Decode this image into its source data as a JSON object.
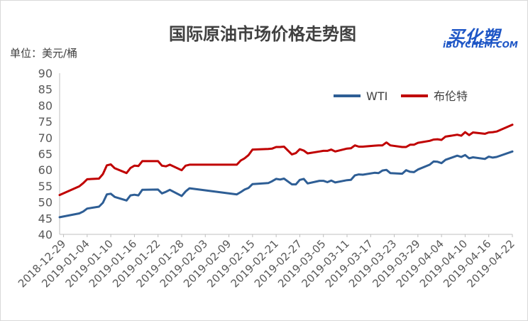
{
  "chart_data": {
    "type": "line",
    "title": "国际原油市场价格走势图",
    "unit": "单位：美元/桶",
    "ylim": [
      40,
      90
    ],
    "yticks": [
      40,
      45,
      50,
      55,
      60,
      65,
      70,
      75,
      80,
      85,
      90
    ],
    "xlim": [
      "2018-12-28",
      "2019-04-22"
    ],
    "x_tick_labels": [
      "2018-12-29",
      "2019-01-04",
      "2019-01-10",
      "2019-01-16",
      "2019-01-22",
      "2019-01-28",
      "2019-02-03",
      "2019-02-09",
      "2019-02-15",
      "2019-02-21",
      "2019-02-27",
      "2019-03-05",
      "2019-03-11",
      "2019-03-17",
      "2019-03-23",
      "2019-03-29",
      "2019-04-04",
      "2019-04-10",
      "2019-04-16",
      "2019-04-22"
    ],
    "legend_position": "top-right",
    "grid": false,
    "series": [
      {
        "name": "WTI",
        "color": "#2e5e95",
        "points": [
          [
            "2018-12-28",
            45.3
          ],
          [
            "2019-01-02",
            46.5
          ],
          [
            "2019-01-03",
            47.1
          ],
          [
            "2019-01-04",
            48.0
          ],
          [
            "2019-01-07",
            48.6
          ],
          [
            "2019-01-08",
            49.8
          ],
          [
            "2019-01-09",
            52.4
          ],
          [
            "2019-01-10",
            52.6
          ],
          [
            "2019-01-11",
            51.6
          ],
          [
            "2019-01-14",
            50.5
          ],
          [
            "2019-01-15",
            52.1
          ],
          [
            "2019-01-16",
            52.3
          ],
          [
            "2019-01-17",
            52.1
          ],
          [
            "2019-01-18",
            53.8
          ],
          [
            "2019-01-22",
            53.9
          ],
          [
            "2019-01-23",
            52.7
          ],
          [
            "2019-01-24",
            53.2
          ],
          [
            "2019-01-25",
            53.8
          ],
          [
            "2019-01-28",
            51.9
          ],
          [
            "2019-01-29",
            53.3
          ],
          [
            "2019-01-30",
            54.3
          ],
          [
            "2019-02-11",
            52.4
          ],
          [
            "2019-02-12",
            53.1
          ],
          [
            "2019-02-13",
            53.9
          ],
          [
            "2019-02-14",
            54.4
          ],
          [
            "2019-02-15",
            55.6
          ],
          [
            "2019-02-19",
            55.9
          ],
          [
            "2019-02-20",
            56.5
          ],
          [
            "2019-02-21",
            57.2
          ],
          [
            "2019-02-22",
            57.0
          ],
          [
            "2019-02-23",
            57.3
          ],
          [
            "2019-02-25",
            55.5
          ],
          [
            "2019-02-26",
            55.5
          ],
          [
            "2019-02-27",
            56.9
          ],
          [
            "2019-02-28",
            57.2
          ],
          [
            "2019-03-01",
            55.8
          ],
          [
            "2019-03-04",
            56.6
          ],
          [
            "2019-03-05",
            56.6
          ],
          [
            "2019-03-06",
            56.2
          ],
          [
            "2019-03-07",
            56.7
          ],
          [
            "2019-03-08",
            56.1
          ],
          [
            "2019-03-11",
            56.8
          ],
          [
            "2019-03-12",
            56.9
          ],
          [
            "2019-03-13",
            58.3
          ],
          [
            "2019-03-14",
            58.6
          ],
          [
            "2019-03-15",
            58.5
          ],
          [
            "2019-03-18",
            59.1
          ],
          [
            "2019-03-19",
            59.0
          ],
          [
            "2019-03-20",
            59.8
          ],
          [
            "2019-03-21",
            60.0
          ],
          [
            "2019-03-22",
            59.0
          ],
          [
            "2019-03-25",
            58.8
          ],
          [
            "2019-03-26",
            59.9
          ],
          [
            "2019-03-27",
            59.4
          ],
          [
            "2019-03-28",
            59.3
          ],
          [
            "2019-03-29",
            60.1
          ],
          [
            "2019-04-01",
            61.6
          ],
          [
            "2019-04-02",
            62.6
          ],
          [
            "2019-04-03",
            62.5
          ],
          [
            "2019-04-04",
            62.1
          ],
          [
            "2019-04-05",
            63.1
          ],
          [
            "2019-04-08",
            64.4
          ],
          [
            "2019-04-09",
            64.0
          ],
          [
            "2019-04-10",
            64.6
          ],
          [
            "2019-04-11",
            63.6
          ],
          [
            "2019-04-12",
            63.9
          ],
          [
            "2019-04-15",
            63.4
          ],
          [
            "2019-04-16",
            64.1
          ],
          [
            "2019-04-17",
            63.8
          ],
          [
            "2019-04-18",
            64.0
          ],
          [
            "2019-04-22",
            65.7
          ]
        ]
      },
      {
        "name": "布伦特",
        "color": "#c00000",
        "points": [
          [
            "2018-12-28",
            52.2
          ],
          [
            "2019-01-02",
            54.9
          ],
          [
            "2019-01-03",
            55.9
          ],
          [
            "2019-01-04",
            57.1
          ],
          [
            "2019-01-07",
            57.3
          ],
          [
            "2019-01-08",
            58.7
          ],
          [
            "2019-01-09",
            61.4
          ],
          [
            "2019-01-10",
            61.7
          ],
          [
            "2019-01-11",
            60.5
          ],
          [
            "2019-01-14",
            59.0
          ],
          [
            "2019-01-15",
            60.6
          ],
          [
            "2019-01-16",
            61.3
          ],
          [
            "2019-01-17",
            61.2
          ],
          [
            "2019-01-18",
            62.7
          ],
          [
            "2019-01-22",
            62.7
          ],
          [
            "2019-01-23",
            61.3
          ],
          [
            "2019-01-24",
            61.1
          ],
          [
            "2019-01-25",
            61.6
          ],
          [
            "2019-01-28",
            59.9
          ],
          [
            "2019-01-29",
            61.3
          ],
          [
            "2019-01-30",
            61.6
          ],
          [
            "2019-02-11",
            61.6
          ],
          [
            "2019-02-12",
            62.9
          ],
          [
            "2019-02-13",
            63.6
          ],
          [
            "2019-02-14",
            64.6
          ],
          [
            "2019-02-15",
            66.3
          ],
          [
            "2019-02-19",
            66.5
          ],
          [
            "2019-02-20",
            66.6
          ],
          [
            "2019-02-21",
            67.1
          ],
          [
            "2019-02-22",
            67.1
          ],
          [
            "2019-02-23",
            67.2
          ],
          [
            "2019-02-25",
            64.8
          ],
          [
            "2019-02-26",
            65.2
          ],
          [
            "2019-02-27",
            66.4
          ],
          [
            "2019-02-28",
            66.0
          ],
          [
            "2019-03-01",
            65.1
          ],
          [
            "2019-03-04",
            65.7
          ],
          [
            "2019-03-05",
            65.9
          ],
          [
            "2019-03-06",
            65.9
          ],
          [
            "2019-03-07",
            66.3
          ],
          [
            "2019-03-08",
            65.7
          ],
          [
            "2019-03-11",
            66.6
          ],
          [
            "2019-03-12",
            66.7
          ],
          [
            "2019-03-13",
            67.6
          ],
          [
            "2019-03-14",
            67.2
          ],
          [
            "2019-03-15",
            67.2
          ],
          [
            "2019-03-18",
            67.5
          ],
          [
            "2019-03-19",
            67.6
          ],
          [
            "2019-03-20",
            67.6
          ],
          [
            "2019-03-21",
            68.5
          ],
          [
            "2019-03-22",
            67.6
          ],
          [
            "2019-03-25",
            67.1
          ],
          [
            "2019-03-26",
            67.1
          ],
          [
            "2019-03-27",
            67.8
          ],
          [
            "2019-03-28",
            67.8
          ],
          [
            "2019-03-29",
            68.4
          ],
          [
            "2019-04-01",
            69.0
          ],
          [
            "2019-04-02",
            69.4
          ],
          [
            "2019-04-03",
            69.5
          ],
          [
            "2019-04-04",
            69.3
          ],
          [
            "2019-04-05",
            70.3
          ],
          [
            "2019-04-08",
            70.9
          ],
          [
            "2019-04-09",
            70.6
          ],
          [
            "2019-04-10",
            71.7
          ],
          [
            "2019-04-11",
            70.8
          ],
          [
            "2019-04-12",
            71.6
          ],
          [
            "2019-04-15",
            71.2
          ],
          [
            "2019-04-16",
            71.6
          ],
          [
            "2019-04-17",
            71.7
          ],
          [
            "2019-04-18",
            71.9
          ],
          [
            "2019-04-22",
            74.0
          ]
        ]
      }
    ]
  },
  "brand": {
    "logo_cn": "买化塑",
    "logo_en": "iBUYCHEM.COM",
    "color": "#1e56c6"
  }
}
